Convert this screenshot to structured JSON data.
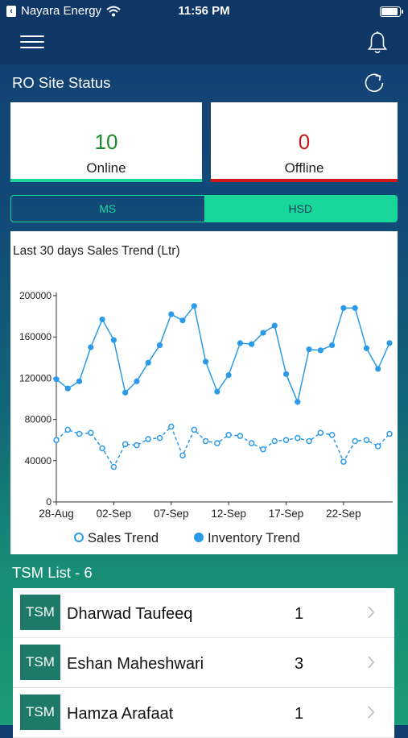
{
  "status_bar": {
    "carrier": "Nayara Energy",
    "time": "11:56 PM"
  },
  "icons": {
    "menu": "hamburger-icon",
    "notifications": "bell-icon",
    "refresh": "refresh-icon",
    "wifi": "wifi-icon",
    "battery": "battery-icon",
    "chevron": "chevron-right-icon"
  },
  "ro_site_status": {
    "title": "RO Site Status",
    "online": {
      "value": "10",
      "label": "Online",
      "color": "#1f8a2c",
      "bar_color": "#19d69a"
    },
    "offline": {
      "value": "0",
      "label": "Offline",
      "color": "#c41a1a",
      "bar_color": "#d01a1a"
    }
  },
  "product_toggle": {
    "options": [
      "MS",
      "HSD"
    ],
    "selected": "HSD"
  },
  "chart_data": {
    "type": "line",
    "title": "Last 30 days Sales Trend (Ltr)",
    "x_tick_labels": [
      "28-Aug",
      "02-Sep",
      "07-Sep",
      "12-Sep",
      "17-Sep",
      "22-Sep"
    ],
    "y_ticks": [
      0,
      40000,
      80000,
      120000,
      160000,
      200000
    ],
    "ylim": [
      0,
      200000
    ],
    "x": [
      "28-Aug",
      "29-Aug",
      "30-Aug",
      "31-Aug",
      "01-Sep",
      "02-Sep",
      "03-Sep",
      "04-Sep",
      "05-Sep",
      "06-Sep",
      "07-Sep",
      "08-Sep",
      "09-Sep",
      "10-Sep",
      "11-Sep",
      "12-Sep",
      "13-Sep",
      "14-Sep",
      "15-Sep",
      "16-Sep",
      "17-Sep",
      "18-Sep",
      "19-Sep",
      "20-Sep",
      "21-Sep",
      "22-Sep",
      "23-Sep",
      "24-Sep",
      "25-Sep",
      "26-Sep"
    ],
    "series": [
      {
        "name": "Sales Trend",
        "marker": "hollow",
        "color": "#2b9ae8",
        "values": [
          60000,
          70000,
          66000,
          67000,
          52000,
          34000,
          56000,
          55000,
          61000,
          62000,
          73000,
          45000,
          70000,
          59000,
          57000,
          65000,
          64000,
          57000,
          51000,
          59000,
          60000,
          62000,
          59000,
          67000,
          65000,
          39000,
          59000,
          60000,
          54000,
          66000
        ]
      },
      {
        "name": "Inventory Trend",
        "marker": "filled",
        "color": "#2b9ae8",
        "values": [
          119000,
          110000,
          117000,
          150000,
          177000,
          157000,
          106000,
          117000,
          135000,
          152000,
          182000,
          176000,
          190000,
          136000,
          107000,
          123000,
          154000,
          153000,
          164000,
          171000,
          124000,
          97000,
          148000,
          147000,
          152000,
          188000,
          188000,
          149000,
          129000,
          154000
        ]
      }
    ],
    "legend_position": "bottom"
  },
  "tsm": {
    "title": "TSM List - 6",
    "badge": "TSM",
    "rows": [
      {
        "name": "Dharwad Taufeeq",
        "count": "1"
      },
      {
        "name": "Eshan Maheshwari",
        "count": "3"
      },
      {
        "name": "Hamza Arafaat",
        "count": "1"
      }
    ]
  }
}
